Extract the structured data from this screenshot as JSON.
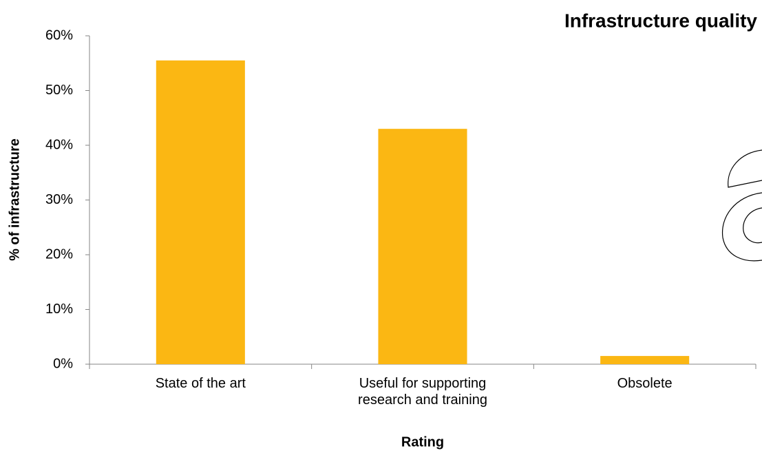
{
  "chart_data": {
    "type": "bar",
    "title": "Infrastructure quality",
    "x_label": "Rating",
    "y_label": "% of infrastructure",
    "categories": [
      "State of the art",
      "Useful for supporting research and training",
      "Obsolete"
    ],
    "values": [
      55.5,
      43,
      1.5
    ],
    "color": "#fbb713",
    "ylim": [
      0,
      60
    ],
    "yticks": [
      {
        "value": 0,
        "label": "0%"
      },
      {
        "value": 10,
        "label": "10%"
      },
      {
        "value": 20,
        "label": "20%"
      },
      {
        "value": 30,
        "label": "30%"
      },
      {
        "value": 40,
        "label": "40%"
      },
      {
        "value": 50,
        "label": "50%"
      },
      {
        "value": 60,
        "label": "60%"
      }
    ],
    "grid": false
  }
}
